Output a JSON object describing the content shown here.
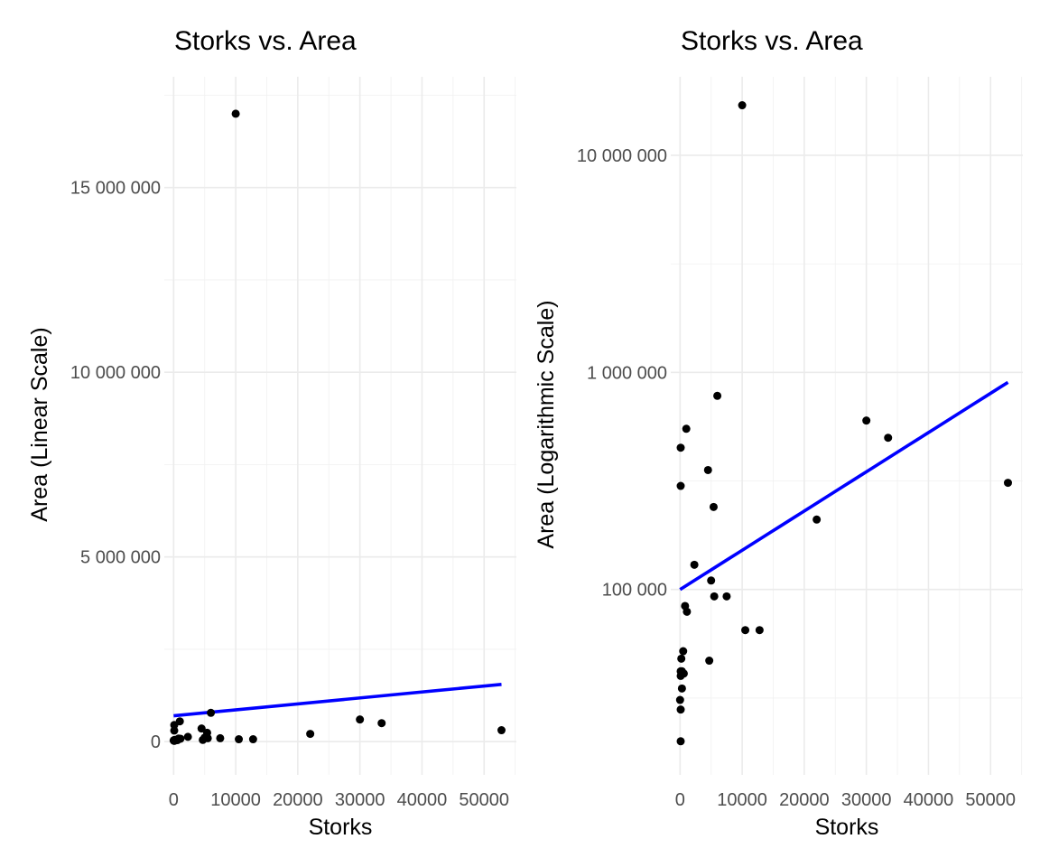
{
  "chart_data": [
    {
      "type": "scatter",
      "title": "Storks vs. Area",
      "xlabel": "Storks",
      "ylabel": "Area (Linear Scale)",
      "y_scale": "linear",
      "xlim": [
        -1500,
        55200
      ],
      "ylim": [
        -900000,
        18000000
      ],
      "x_ticks": [
        0,
        10000,
        20000,
        30000,
        40000,
        50000
      ],
      "x_tick_labels": [
        "0",
        "10000",
        "20000",
        "30000",
        "40000",
        "50000"
      ],
      "x_minor_ticks": [
        5000,
        15000,
        25000,
        35000,
        45000,
        55000
      ],
      "y_ticks": [
        0,
        5000000,
        10000000,
        15000000
      ],
      "y_tick_labels": [
        "0",
        "5 000 000",
        "10 000 000",
        "15 000 000"
      ],
      "y_minor_ticks": [
        2500000,
        7500000,
        12500000,
        17500000
      ],
      "grid": true,
      "points": {
        "x": [
          100,
          100,
          100,
          300,
          500,
          800,
          1100,
          2300,
          4500,
          4700,
          5000,
          5400,
          5500,
          6000,
          7500,
          10500,
          12800,
          22000,
          30000,
          33500,
          52800,
          10000,
          100,
          100,
          100,
          300,
          600,
          1000,
          0,
          200
        ],
        "y": [
          450000,
          300000,
          20000,
          35000,
          52000,
          84000,
          79000,
          130000,
          355000,
          47000,
          110000,
          240000,
          93000,
          780000,
          93000,
          65000,
          65000,
          210000,
          600000,
          500000,
          310000,
          17000000,
          42000,
          40000,
          28000,
          42000,
          41000,
          550000,
          31000,
          48000
        ]
      },
      "fit_line": {
        "color": "#0000ff",
        "x": [
          0,
          52800
        ],
        "y": [
          700000,
          1550000
        ]
      }
    },
    {
      "type": "scatter",
      "title": "Storks vs. Area",
      "xlabel": "Storks",
      "ylabel": "Area (Logarithmic Scale)",
      "y_scale": "log10",
      "xlim": [
        -1500,
        55200
      ],
      "ylim": [
        14000,
        23000000
      ],
      "x_ticks": [
        0,
        10000,
        20000,
        30000,
        40000,
        50000
      ],
      "x_tick_labels": [
        "0",
        "10000",
        "20000",
        "30000",
        "40000",
        "50000"
      ],
      "x_minor_ticks": [
        5000,
        15000,
        25000,
        35000,
        45000,
        55000
      ],
      "y_ticks": [
        100000,
        1000000,
        10000000
      ],
      "y_tick_labels": [
        "100 000",
        "1 000 000",
        "10 000 000"
      ],
      "y_minor_ticks": [
        31623,
        316228,
        3162278
      ],
      "grid": true,
      "points": {
        "x": [
          100,
          100,
          100,
          300,
          500,
          800,
          1100,
          2300,
          4500,
          4700,
          5000,
          5400,
          5500,
          6000,
          7500,
          10500,
          12800,
          22000,
          30000,
          33500,
          52800,
          10000,
          100,
          100,
          100,
          300,
          600,
          1000,
          0,
          200
        ],
        "y": [
          450000,
          300000,
          20000,
          35000,
          52000,
          84000,
          79000,
          130000,
          355000,
          47000,
          110000,
          240000,
          93000,
          780000,
          93000,
          65000,
          65000,
          210000,
          600000,
          500000,
          310000,
          17000000,
          42000,
          40000,
          28000,
          42000,
          41000,
          550000,
          31000,
          48000
        ]
      },
      "fit_line": {
        "color": "#0000ff",
        "x": [
          0,
          52800
        ],
        "y": [
          100000,
          900000
        ]
      }
    }
  ]
}
